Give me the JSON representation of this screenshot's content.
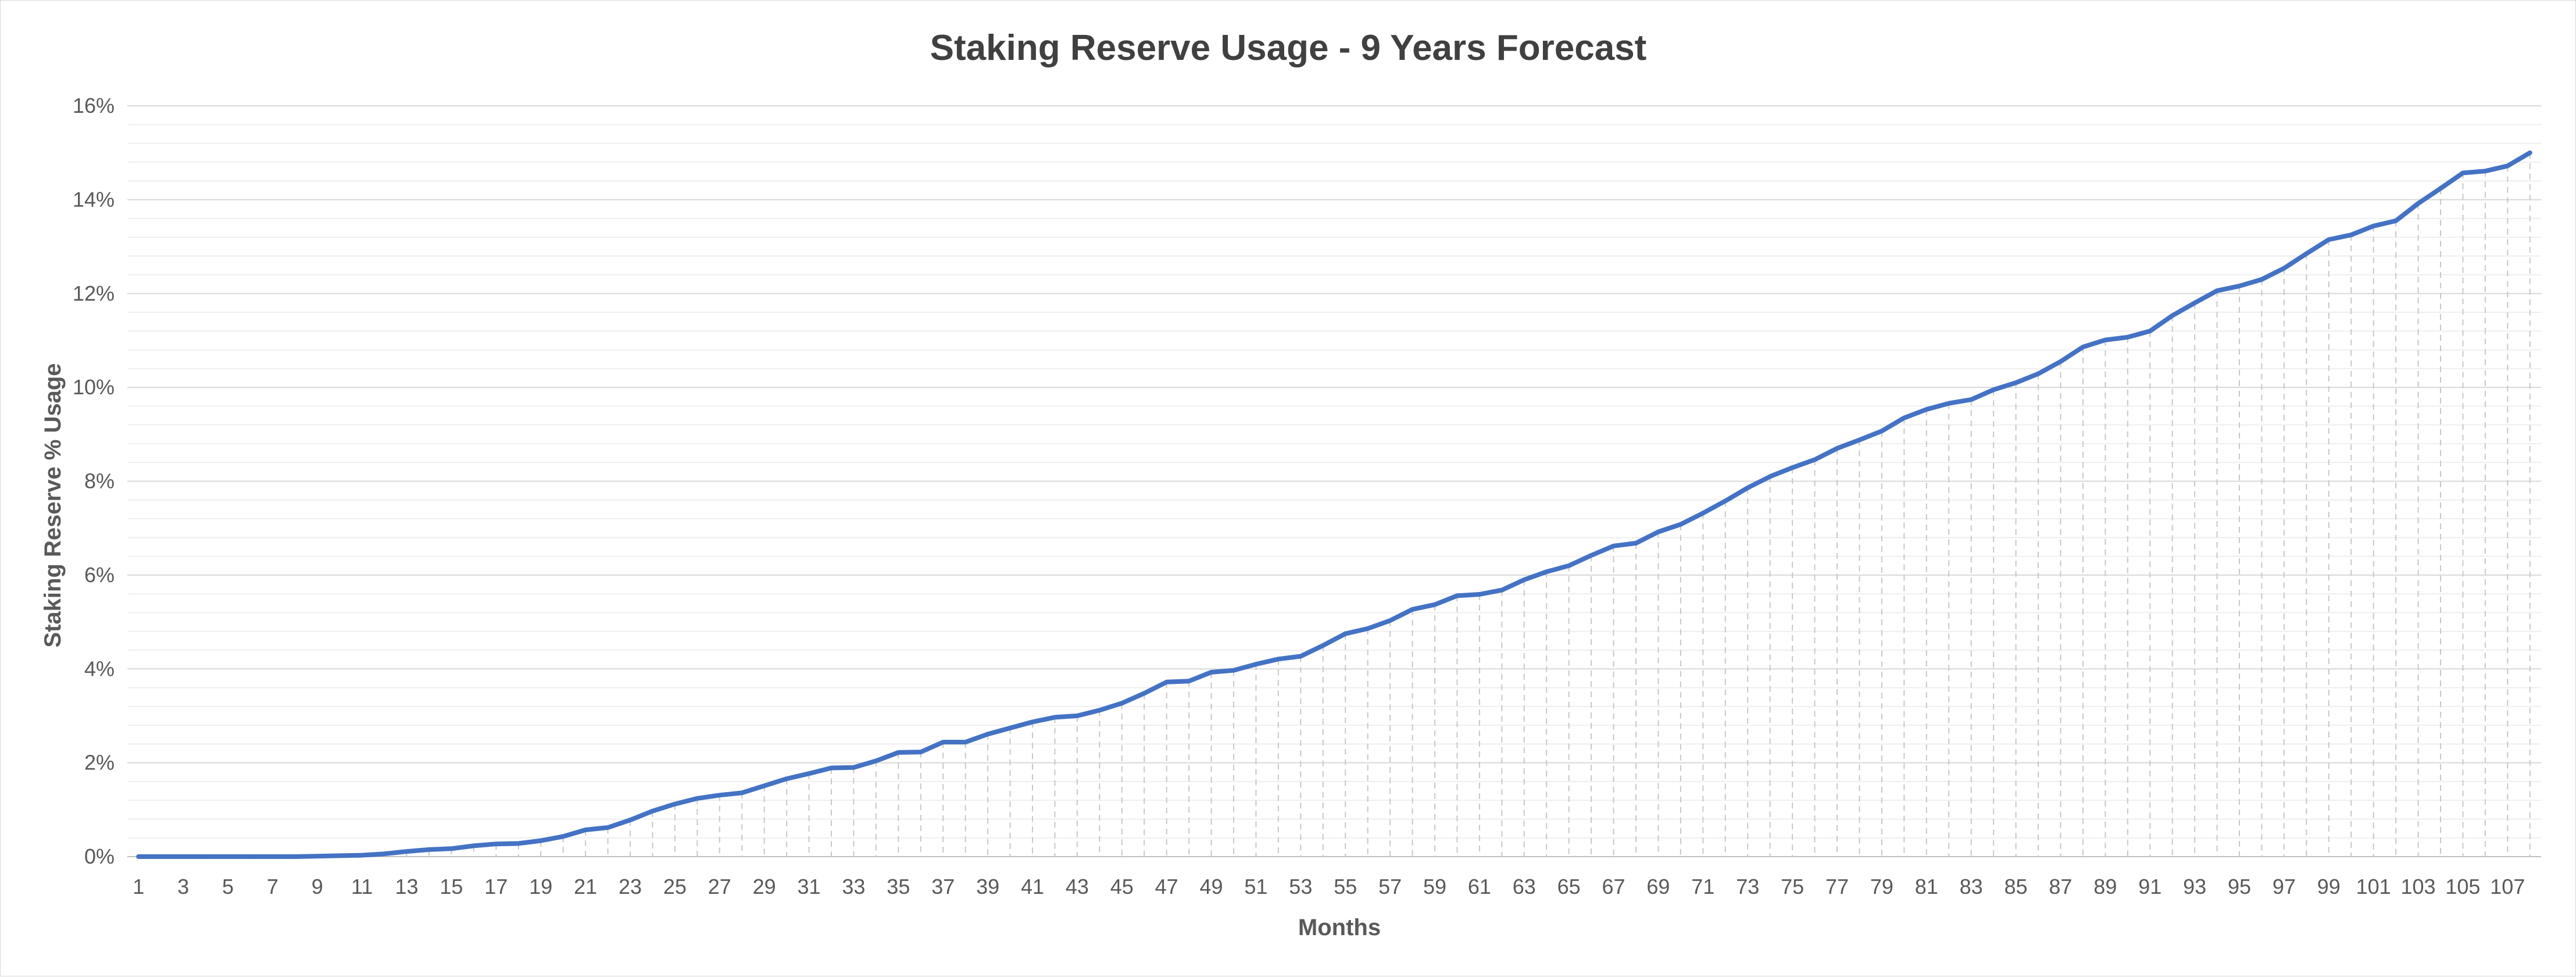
{
  "chart_data": {
    "type": "line",
    "title": "Staking Reserve Usage - 9 Years Forecast",
    "xlabel": "Months",
    "ylabel": "Staking Reserve % Usage",
    "ylim": [
      0,
      16
    ],
    "y_ticks": [
      "0%",
      "2%",
      "4%",
      "6%",
      "8%",
      "10%",
      "12%",
      "14%",
      "16%"
    ],
    "y_minor_step": 0.4,
    "grid": "horizontal major and minor",
    "drop_lines": true,
    "legend": "none",
    "line_color": "#4472C4",
    "x_tick_labels": [
      "1",
      "3",
      "5",
      "7",
      "9",
      "11",
      "13",
      "15",
      "17",
      "19",
      "21",
      "23",
      "25",
      "27",
      "29",
      "31",
      "33",
      "35",
      "37",
      "39",
      "41",
      "43",
      "45",
      "47",
      "49",
      "51",
      "53",
      "55",
      "57",
      "59",
      "61",
      "63",
      "65",
      "67",
      "69",
      "71",
      "73",
      "75",
      "77",
      "79",
      "81",
      "83",
      "85",
      "87",
      "89",
      "91",
      "93",
      "95",
      "97",
      "99",
      "101",
      "103",
      "105",
      "107"
    ],
    "categories": [
      1,
      2,
      3,
      4,
      5,
      6,
      7,
      8,
      9,
      10,
      11,
      12,
      13,
      14,
      15,
      16,
      17,
      18,
      19,
      20,
      21,
      22,
      23,
      24,
      25,
      26,
      27,
      28,
      29,
      30,
      31,
      32,
      33,
      34,
      35,
      36,
      37,
      38,
      39,
      40,
      41,
      42,
      43,
      44,
      45,
      46,
      47,
      48,
      49,
      50,
      51,
      52,
      53,
      54,
      55,
      56,
      57,
      58,
      59,
      60,
      61,
      62,
      63,
      64,
      65,
      66,
      67,
      68,
      69,
      70,
      71,
      72,
      73,
      74,
      75,
      76,
      77,
      78,
      79,
      80,
      81,
      82,
      83,
      84,
      85,
      86,
      87,
      88,
      89,
      90,
      91,
      92,
      93,
      94,
      95,
      96,
      97,
      98,
      99,
      100,
      101,
      102,
      103,
      104,
      105,
      106,
      107,
      108
    ],
    "series": [
      {
        "values": [
          0.0,
          0.0,
          0.0,
          0.0,
          0.0,
          0.0,
          0.0,
          0.0,
          0.01,
          0.02,
          0.03,
          0.06,
          0.11,
          0.15,
          0.17,
          0.23,
          0.27,
          0.28,
          0.34,
          0.43,
          0.57,
          0.62,
          0.78,
          0.97,
          1.12,
          1.24,
          1.31,
          1.36,
          1.51,
          1.66,
          1.77,
          1.89,
          1.9,
          2.04,
          2.22,
          2.23,
          2.44,
          2.44,
          2.61,
          2.74,
          2.87,
          2.97,
          3.0,
          3.12,
          3.27,
          3.48,
          3.72,
          3.74,
          3.93,
          3.97,
          4.1,
          4.21,
          4.27,
          4.5,
          4.75,
          4.86,
          5.03,
          5.27,
          5.37,
          5.56,
          5.59,
          5.68,
          5.9,
          6.07,
          6.2,
          6.42,
          6.62,
          6.68,
          6.92,
          7.08,
          7.32,
          7.58,
          7.86,
          8.1,
          8.29,
          8.46,
          8.7,
          8.88,
          9.07,
          9.35,
          9.53,
          9.66,
          9.74,
          9.95,
          10.1,
          10.29,
          10.55,
          10.86,
          11.01,
          11.07,
          11.2,
          11.53,
          11.8,
          12.06,
          12.16,
          12.3,
          12.54,
          12.85,
          13.15,
          13.25,
          13.44,
          13.55,
          13.92,
          14.24,
          14.57,
          14.61,
          14.72,
          15.0
        ]
      }
    ]
  }
}
